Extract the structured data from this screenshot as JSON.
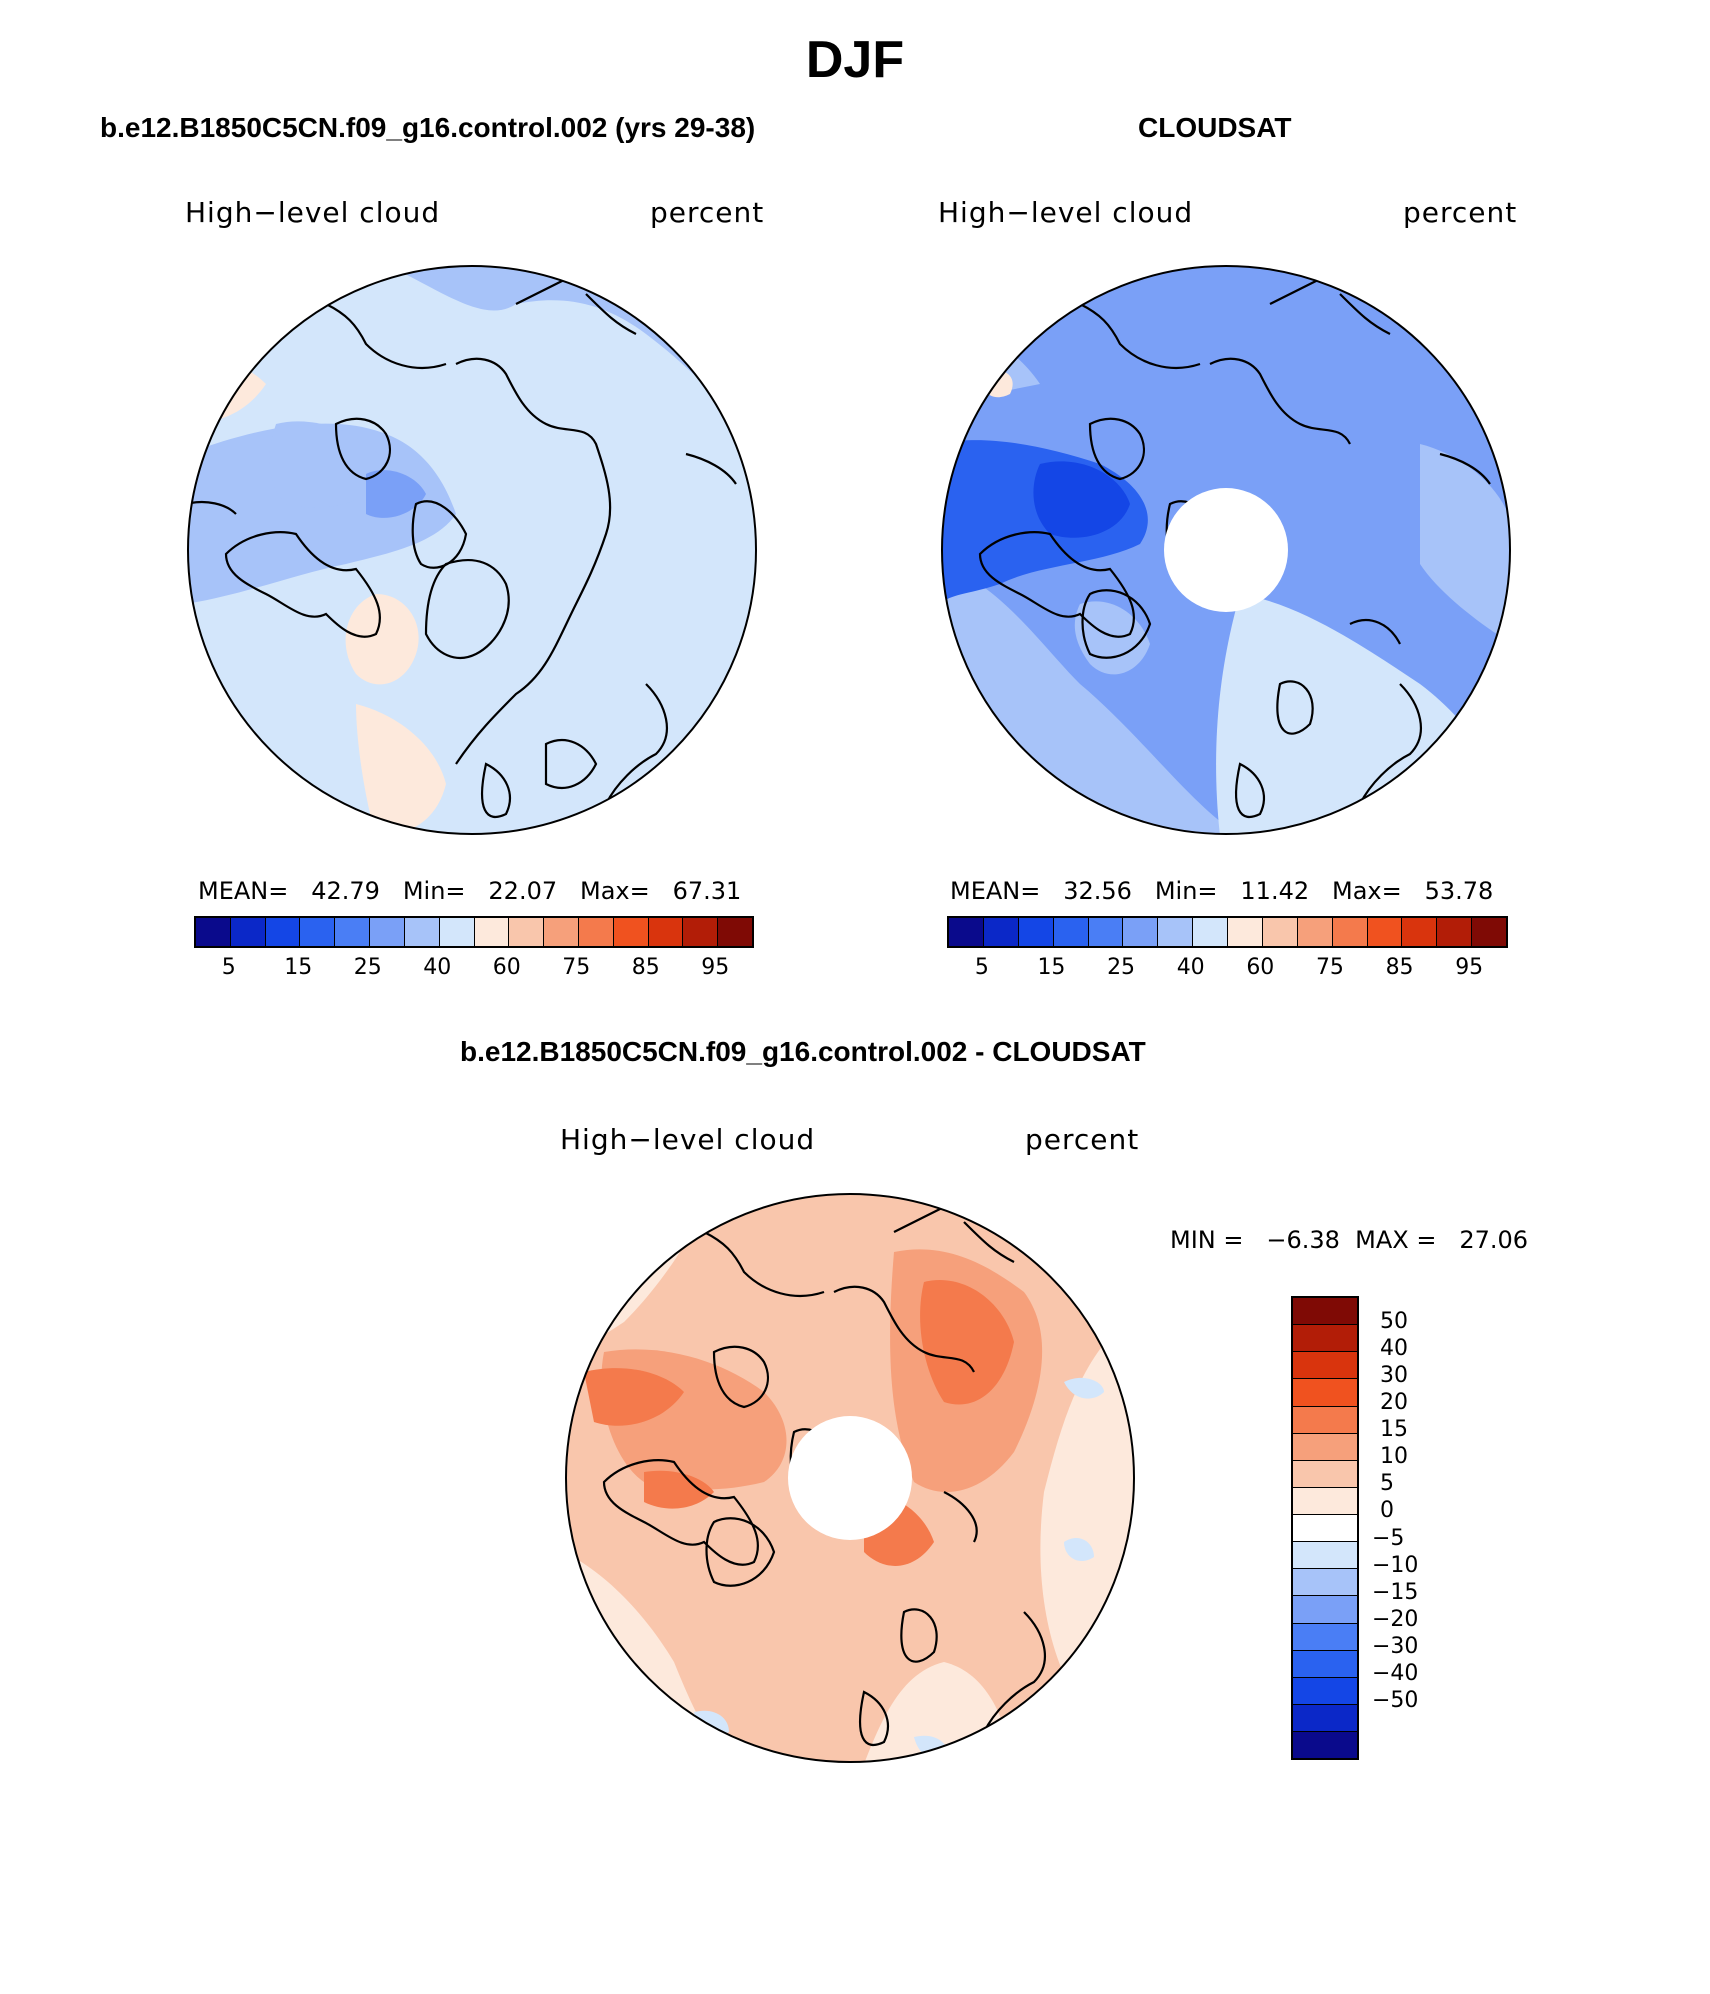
{
  "title": "DJF",
  "colors": {
    "abs_scale": [
      "#0a0a8c",
      "#0b28c8",
      "#1446e6",
      "#2a62f0",
      "#4a7ef5",
      "#7aa0f7",
      "#a7c3f9",
      "#d3e6fb",
      "#fde9dc",
      "#f9c6ac",
      "#f6a07b",
      "#f47a4c",
      "#f0521f",
      "#d9340d",
      "#b21d07",
      "#7f0a05"
    ],
    "diff_scale": [
      "#0a0a8c",
      "#0b28c8",
      "#1446e6",
      "#2a62f0",
      "#4a7ef5",
      "#7aa0f7",
      "#a7c3f9",
      "#d3e6fb",
      "#ffffff",
      "#fde9dc",
      "#f9c6ac",
      "#f6a07b",
      "#f47a4c",
      "#f0521f",
      "#d9340d",
      "#b21d07",
      "#7f0a05"
    ]
  },
  "panels": [
    {
      "title": "b.e12.B1850C5CN.f09_g16.control.002 (yrs 29-38)",
      "variable": "High−level cloud",
      "units": "percent",
      "stats": "MEAN=   42.79   Min=   22.07   Max=   67.31",
      "colorbar_labels": [
        "5",
        "15",
        "25",
        "40",
        "60",
        "75",
        "85",
        "95"
      ],
      "map_name": "model-map"
    },
    {
      "title": "CLOUDSAT",
      "variable": "High−level cloud",
      "units": "percent",
      "stats": "MEAN=   32.56   Min=   11.42   Max=   53.78",
      "colorbar_labels": [
        "5",
        "15",
        "25",
        "40",
        "60",
        "75",
        "85",
        "95"
      ],
      "map_name": "obs-map"
    }
  ],
  "diff_panel": {
    "title": "b.e12.B1850C5CN.f09_g16.control.002 - CLOUDSAT",
    "variable": "High−level cloud",
    "units": "percent",
    "stats": "MIN =   −6.38  MAX =   27.06",
    "colorbar_labels": [
      "50",
      "40",
      "30",
      "20",
      "15",
      "10",
      "5",
      "0",
      "−5",
      "−10",
      "−15",
      "−20",
      "−30",
      "−40",
      "−50"
    ]
  }
}
